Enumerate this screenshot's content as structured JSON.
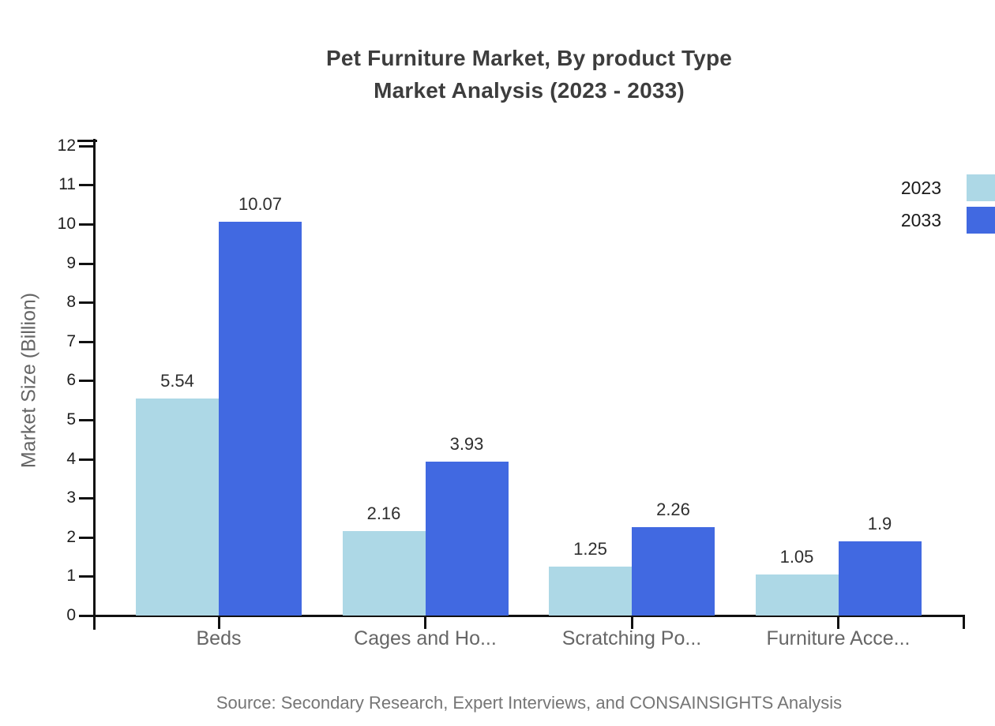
{
  "title": {
    "line1": "Pet Furniture Market, By product Type",
    "line2": "Market Analysis (2023 - 2033)"
  },
  "source": "Source: Secondary Research, Expert Interviews, and CONSAINSIGHTS Analysis",
  "legend": [
    {
      "label": "2023",
      "color": "#ADD8E6"
    },
    {
      "label": "2033",
      "color": "#4169E1"
    }
  ],
  "chart_data": {
    "type": "bar",
    "title": "Pet Furniture Market, By product Type Market Analysis (2023 - 2033)",
    "categories": [
      "Beds",
      "Cages and Ho...",
      "Scratching Po...",
      "Furniture Acce..."
    ],
    "series": [
      {
        "name": "2023",
        "color": "#ADD8E6",
        "values": [
          5.54,
          2.16,
          1.25,
          1.05
        ]
      },
      {
        "name": "2033",
        "color": "#4169E1",
        "values": [
          10.07,
          3.93,
          2.26,
          1.9
        ]
      }
    ],
    "data_labels": [
      "5.54",
      "10.07",
      "2.16",
      "3.93",
      "1.25",
      "2.26",
      "1.05",
      "1.9"
    ],
    "xlabel": "",
    "ylabel": "Market Size (Billion)",
    "ylim": [
      0,
      12
    ],
    "yticks": [
      0,
      1,
      2,
      3,
      4,
      5,
      6,
      7,
      8,
      9,
      10,
      11,
      12
    ],
    "grid": false,
    "legend_position": "top-right",
    "background": "#ffffff",
    "axis_color": "#111111"
  }
}
